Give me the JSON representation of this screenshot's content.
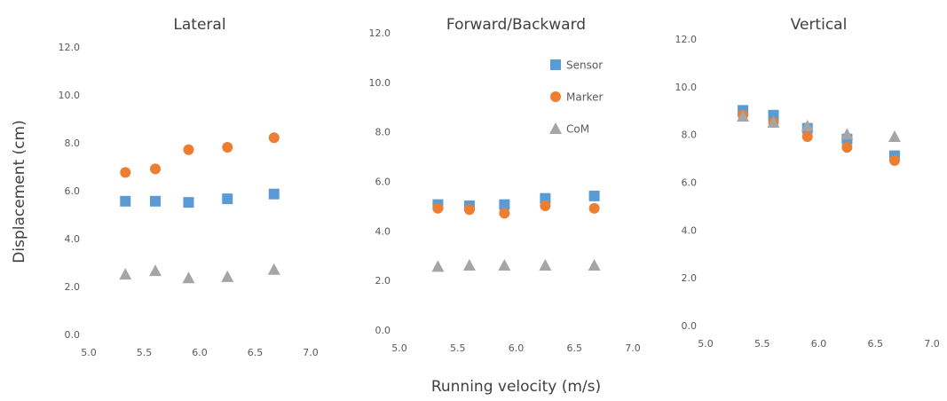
{
  "chart_data": [
    {
      "type": "scatter",
      "title": "Lateral",
      "y_label": "Displacement (cm)",
      "x": [
        5.33,
        5.6,
        5.9,
        6.25,
        6.67
      ],
      "series": [
        {
          "color": "#5b9bd5",
          "marker": "square",
          "values": [
            5.6,
            5.6,
            5.55,
            5.7,
            5.9
          ]
        },
        {
          "color": "#ed7d31",
          "marker": "circle",
          "values": [
            6.8,
            6.95,
            7.75,
            7.85,
            8.25
          ]
        },
        {
          "color": "#a5a5a5",
          "marker": "triangle",
          "values": [
            2.55,
            2.7,
            2.4,
            2.45,
            2.75
          ]
        }
      ],
      "xlim": [
        5,
        7
      ],
      "ylim": [
        0,
        12
      ],
      "xticks": [
        {
          "value": 5,
          "label": "5.0"
        },
        {
          "value": 5.5,
          "label": "5.5"
        },
        {
          "value": 6,
          "label": "6.0"
        },
        {
          "value": 6.5,
          "label": "6.5"
        },
        {
          "value": 7,
          "label": "7.0"
        }
      ],
      "yticks": [
        {
          "value": 0,
          "label": "0.0"
        },
        {
          "value": 2,
          "label": "2.0"
        },
        {
          "value": 4,
          "label": "4.0"
        },
        {
          "value": 6,
          "label": "6.0"
        },
        {
          "value": 8,
          "label": "8.0"
        },
        {
          "value": 10,
          "label": "10.0"
        },
        {
          "value": 12,
          "label": "12.0"
        }
      ]
    },
    {
      "type": "scatter",
      "title": "Forward/Backward",
      "x_label": "Running velocity (m/s)",
      "x": [
        5.33,
        5.6,
        5.9,
        6.25,
        6.67
      ],
      "legend": "upper right",
      "series": [
        {
          "name": "Sensor",
          "color": "#5b9bd5",
          "marker": "square",
          "values": [
            5.1,
            5.05,
            5.1,
            5.35,
            5.45
          ]
        },
        {
          "name": "Marker",
          "color": "#ed7d31",
          "marker": "circle",
          "values": [
            4.95,
            4.9,
            4.75,
            5.05,
            4.95
          ]
        },
        {
          "name": "CoM",
          "color": "#a5a5a5",
          "marker": "triangle",
          "values": [
            2.6,
            2.65,
            2.65,
            2.65,
            2.65
          ]
        }
      ],
      "xlim": [
        5,
        7
      ],
      "ylim": [
        0,
        12
      ],
      "xticks": [
        {
          "value": 5,
          "label": "5.0"
        },
        {
          "value": 5.5,
          "label": "5.5"
        },
        {
          "value": 6,
          "label": "6.0"
        },
        {
          "value": 6.5,
          "label": "6.5"
        },
        {
          "value": 7,
          "label": "7.0"
        }
      ],
      "yticks": [
        {
          "value": 0,
          "label": "0.0"
        },
        {
          "value": 2,
          "label": "2.0"
        },
        {
          "value": 4,
          "label": "4.0"
        },
        {
          "value": 6,
          "label": "6.0"
        },
        {
          "value": 8,
          "label": "8.0"
        },
        {
          "value": 10,
          "label": "10.0"
        },
        {
          "value": 12,
          "label": "12.0"
        }
      ]
    },
    {
      "type": "scatter",
      "title": "Vertical",
      "x": [
        5.33,
        5.6,
        5.9,
        6.25,
        6.67
      ],
      "series": [
        {
          "color": "#5b9bd5",
          "marker": "square",
          "values": [
            9.05,
            8.85,
            8.3,
            7.85,
            7.15
          ]
        },
        {
          "color": "#ed7d31",
          "marker": "circle",
          "values": [
            8.85,
            8.55,
            7.95,
            7.5,
            6.95
          ]
        },
        {
          "color": "#a5a5a5",
          "marker": "triangle",
          "values": [
            8.8,
            8.55,
            8.4,
            8.05,
            7.95
          ]
        }
      ],
      "xlim": [
        5,
        7
      ],
      "ylim": [
        0,
        12
      ],
      "xticks": [
        {
          "value": 5,
          "label": "5.0"
        },
        {
          "value": 5.5,
          "label": "5.5"
        },
        {
          "value": 6,
          "label": "6.0"
        },
        {
          "value": 6.5,
          "label": "6.5"
        },
        {
          "value": 7,
          "label": "7.0"
        }
      ],
      "yticks": [
        {
          "value": 0,
          "label": "0.0"
        },
        {
          "value": 2,
          "label": "2.0"
        },
        {
          "value": 4,
          "label": "4.0"
        },
        {
          "value": 6,
          "label": "6.0"
        },
        {
          "value": 8,
          "label": "8.0"
        },
        {
          "value": 10,
          "label": "10.0"
        },
        {
          "value": 12,
          "label": "12.0"
        }
      ]
    }
  ]
}
